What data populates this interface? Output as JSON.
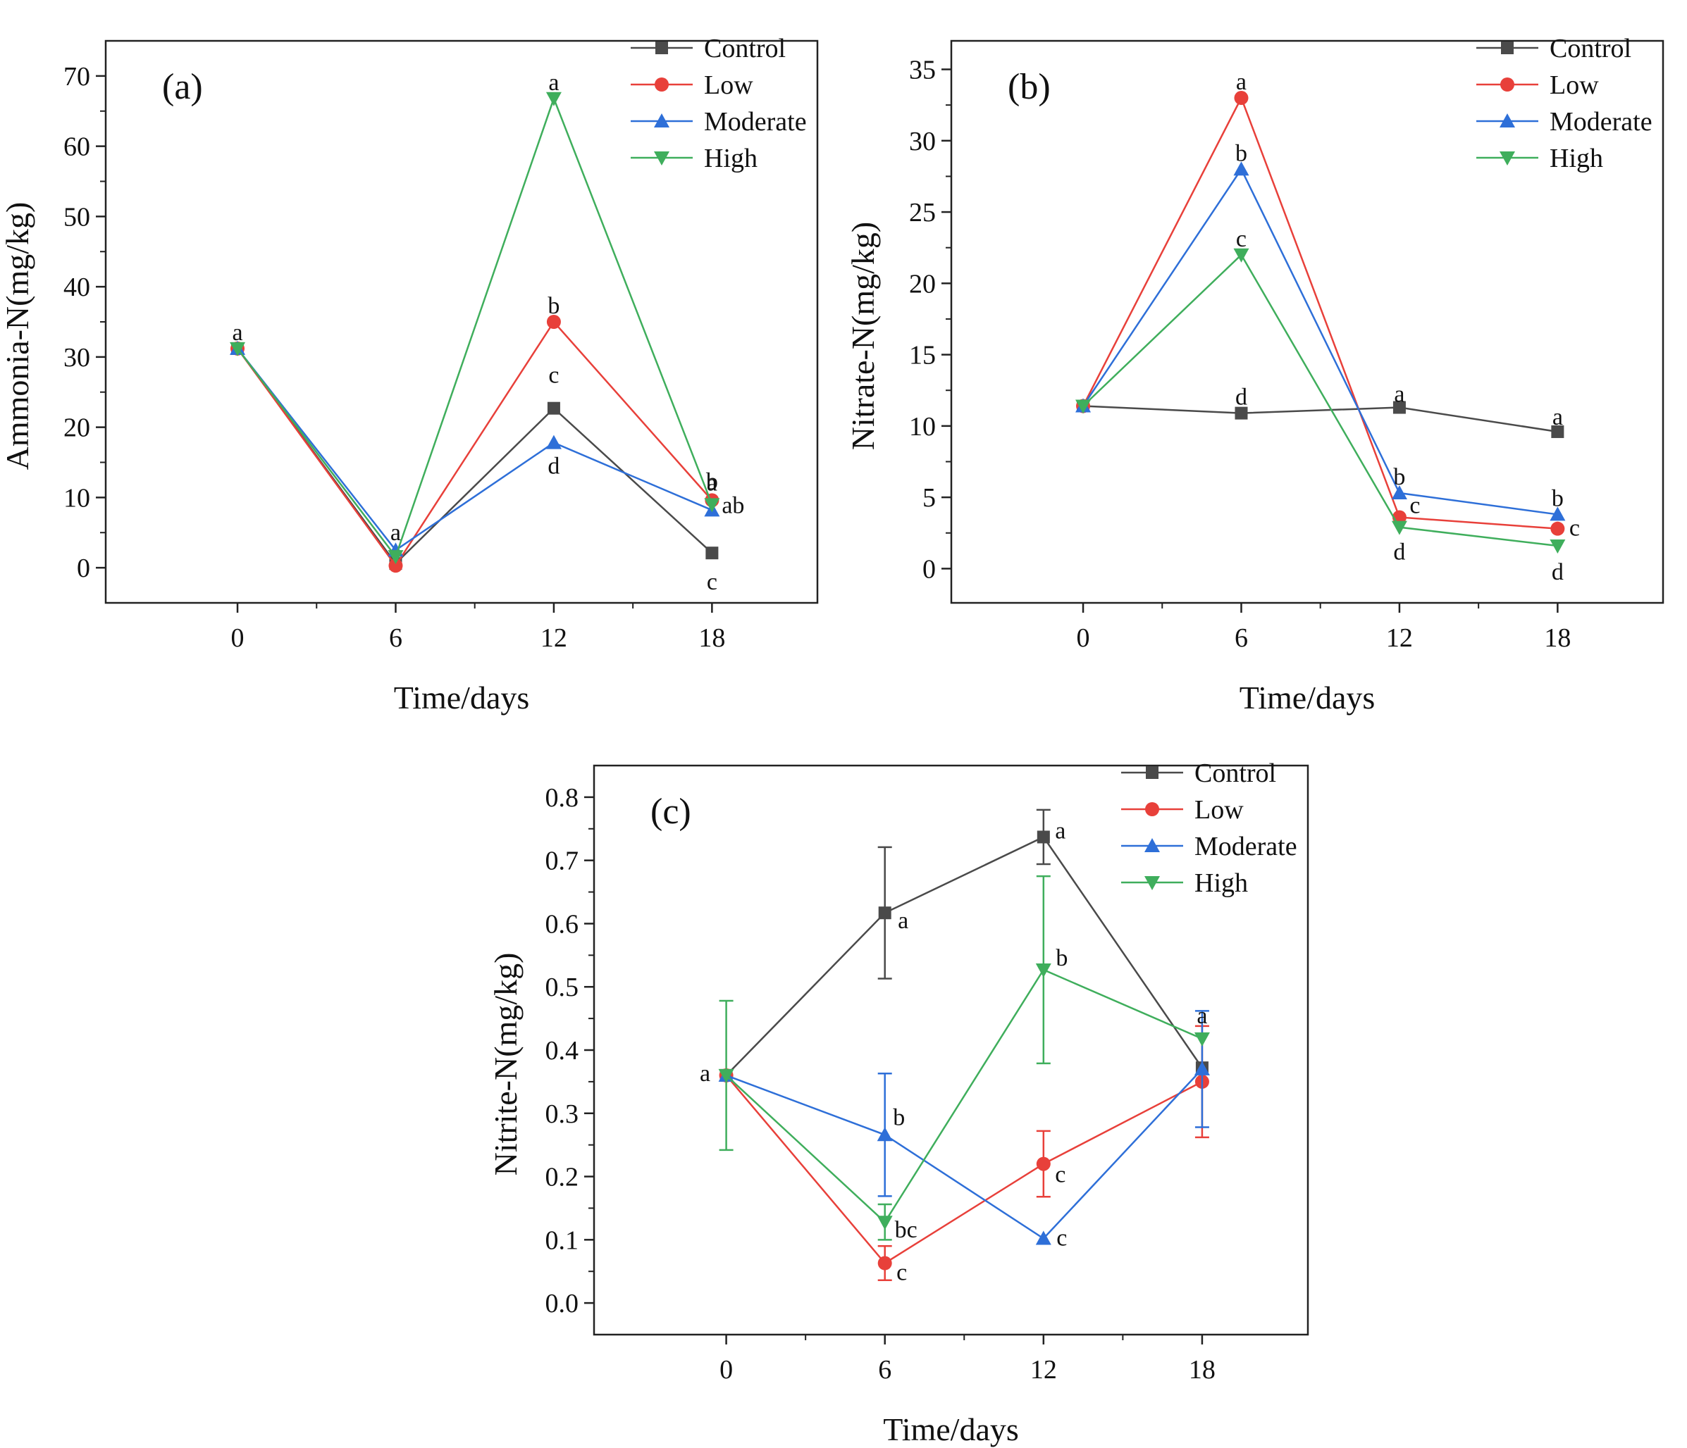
{
  "chart_data": [
    {
      "type": "line",
      "panel_label": "(a)",
      "xlabel": "Time/days",
      "ylabel": "Ammonia-N(mg/kg)",
      "x": [
        0,
        6,
        12,
        18
      ],
      "xticks": [
        "0",
        "6",
        "12",
        "18"
      ],
      "xlim": [
        -5,
        22
      ],
      "ylim": [
        -5,
        75
      ],
      "yticks": [
        0,
        10,
        20,
        30,
        40,
        50,
        60,
        70
      ],
      "ytick_labels": [
        "0",
        "10",
        "20",
        "30",
        "40",
        "50",
        "60",
        "70"
      ],
      "legend": "top-right",
      "series": [
        {
          "name": "Control",
          "color": "#4a4a4a",
          "marker": "square",
          "values": [
            31.2,
            0.6,
            22.7,
            2.1
          ],
          "letters": [
            "",
            "",
            "c",
            "c"
          ]
        },
        {
          "name": "Low",
          "color": "#e8403a",
          "marker": "circle",
          "values": [
            31.2,
            0.3,
            35.0,
            9.6
          ],
          "letters": [
            "",
            "",
            "b",
            "a"
          ]
        },
        {
          "name": "Moderate",
          "color": "#2e6fd8",
          "marker": "triangle-up",
          "values": [
            31.2,
            2.5,
            17.8,
            8.2
          ],
          "letters": [
            "",
            "a",
            "d",
            "ab"
          ]
        },
        {
          "name": "High",
          "color": "#3fae5c",
          "marker": "triangle-down",
          "values": [
            31.2,
            1.6,
            66.8,
            9.0
          ],
          "letters": [
            "a",
            "",
            "a",
            "b"
          ]
        }
      ]
    },
    {
      "type": "line",
      "panel_label": "(b)",
      "xlabel": "Time/days",
      "ylabel": "Nitrate-N(mg/kg)",
      "x": [
        0,
        6,
        12,
        18
      ],
      "xticks": [
        "0",
        "6",
        "12",
        "18"
      ],
      "xlim": [
        -5,
        22
      ],
      "ylim": [
        -2.4,
        37
      ],
      "yticks": [
        0,
        5,
        10,
        15,
        20,
        25,
        30,
        35
      ],
      "ytick_labels": [
        "0",
        "5",
        "10",
        "15",
        "20",
        "25",
        "30",
        "35"
      ],
      "legend": "top-right",
      "series": [
        {
          "name": "Control",
          "color": "#4a4a4a",
          "marker": "square",
          "values": [
            11.4,
            10.9,
            11.3,
            9.6
          ],
          "letters": [
            "",
            "d",
            "a",
            "a"
          ]
        },
        {
          "name": "Low",
          "color": "#e8403a",
          "marker": "circle",
          "values": [
            11.4,
            33.0,
            3.6,
            2.8
          ],
          "letters": [
            "",
            "a",
            "c",
            "c"
          ]
        },
        {
          "name": "Moderate",
          "color": "#2e6fd8",
          "marker": "triangle-up",
          "values": [
            11.4,
            28.0,
            5.3,
            3.8
          ],
          "letters": [
            "",
            "b",
            "b",
            "b"
          ]
        },
        {
          "name": "High",
          "color": "#3fae5c",
          "marker": "triangle-down",
          "values": [
            11.4,
            22.0,
            2.9,
            1.6
          ],
          "letters": [
            "",
            "c",
            "d",
            "d"
          ]
        }
      ]
    },
    {
      "type": "line",
      "panel_label": "(c)",
      "xlabel": "Time/days",
      "ylabel": "Nitrite-N(mg/kg)",
      "x": [
        0,
        6,
        12,
        18
      ],
      "xticks": [
        "0",
        "6",
        "12",
        "18"
      ],
      "xlim": [
        -5,
        22
      ],
      "ylim": [
        -0.05,
        0.85
      ],
      "yticks": [
        0.0,
        0.1,
        0.2,
        0.3,
        0.4,
        0.5,
        0.6,
        0.7,
        0.8
      ],
      "ytick_labels": [
        "0.0",
        "0.1",
        "0.2",
        "0.3",
        "0.4",
        "0.5",
        "0.6",
        "0.7",
        "0.8"
      ],
      "legend": "top-right",
      "series": [
        {
          "name": "Control",
          "color": "#4a4a4a",
          "marker": "square",
          "values": [
            0.36,
            0.617,
            0.737,
            0.372
          ],
          "errors": [
            0.0,
            0.104,
            0.043,
            0.0
          ],
          "letters": [
            "a",
            "a",
            "a",
            ""
          ]
        },
        {
          "name": "Low",
          "color": "#e8403a",
          "marker": "circle",
          "values": [
            0.36,
            0.063,
            0.22,
            0.35
          ],
          "errors": [
            0.0,
            0.027,
            0.052,
            0.088
          ],
          "letters": [
            "",
            "c",
            "c",
            ""
          ]
        },
        {
          "name": "Moderate",
          "color": "#2e6fd8",
          "marker": "triangle-up",
          "values": [
            0.36,
            0.266,
            0.102,
            0.37
          ],
          "errors": [
            0.0,
            0.097,
            0.0,
            0.092
          ],
          "letters": [
            "",
            "b",
            "c",
            ""
          ]
        },
        {
          "name": "High",
          "color": "#3fae5c",
          "marker": "triangle-down",
          "values": [
            0.36,
            0.128,
            0.527,
            0.418
          ],
          "errors": [
            0.118,
            0.028,
            0.148,
            0.0
          ],
          "letters": [
            "",
            "bc",
            "b",
            "a"
          ]
        }
      ]
    }
  ]
}
